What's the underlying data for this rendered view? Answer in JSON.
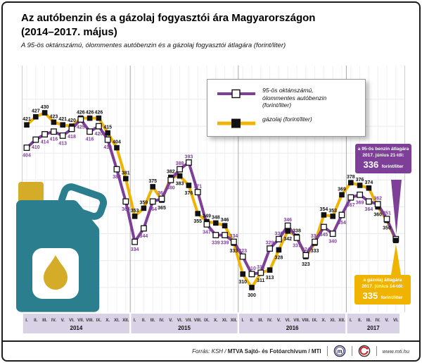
{
  "header": {
    "title": "Az autóbenzin és a gázolaj fogyasztói ára Magyarországon\n(2014–2017. május)",
    "subtitle": "A 95-ös oktánszámú, ólommentes autóbenzin és a gázolaj fogyasztói átlagára (forint/liter)"
  },
  "legend": {
    "benzin_label": "95-ös oktánszámú,\nólommentes autóbenzin\n(forint/liter)",
    "gazolaj_label": "gázolaj (forint/liter)"
  },
  "chart_data": {
    "type": "line",
    "title": "Az autóbenzin és a gázolaj fogyasztói ára Magyarországon (2014–2017. május)",
    "ylabel": "forint/liter",
    "ylim": [
      283,
      460
    ],
    "grid": "on",
    "legend_position": "top-right",
    "years": [
      {
        "label": "2014",
        "months": [
          "I.",
          "II.",
          "III.",
          "IV.",
          "V.",
          "VI.",
          "VII.",
          "VIII.",
          "IX.",
          "X.",
          "XI.",
          "XII."
        ]
      },
      {
        "label": "2015",
        "months": [
          "I.",
          "II.",
          "III.",
          "IV.",
          "V.",
          "VI.",
          "VII.",
          "VIII.",
          "IX.",
          "X.",
          "XI.",
          "XII."
        ]
      },
      {
        "label": "2016",
        "months": [
          "I.",
          "II.",
          "III.",
          "IV.",
          "V.",
          "VI.",
          "VII.",
          "VIII.",
          "IX.",
          "X.",
          "XI.",
          "XII."
        ]
      },
      {
        "label": "2017",
        "months": [
          "I.",
          "II.",
          "III.",
          "IV.",
          "V.",
          "VI."
        ]
      }
    ],
    "series": [
      {
        "name": "95-ös oktánszámú, ólommentes autóbenzin (forint/liter)",
        "color": "#7d3f98",
        "marker": "white-square",
        "values": [
          404,
          410,
          414,
          416,
          413,
          418,
          425,
          416,
          420,
          410,
          388,
          364,
          334,
          344,
          364,
          366,
          380,
          388,
          393,
          371,
          347,
          339,
          339,
          334,
          323,
          310,
          311,
          329,
          336,
          346,
          337,
          324,
          334,
          345,
          340,
          354,
          367,
          369,
          364,
          362,
          351,
          336
        ]
      },
      {
        "name": "gázolaj (forint/liter)",
        "color": "#f0b400",
        "marker": "black-square",
        "values": [
          421,
          427,
          430,
          423,
          421,
          420,
          426,
          426,
          426,
          415,
          404,
          381,
          353,
          359,
          375,
          365,
          382,
          383,
          376,
          355,
          349,
          348,
          346,
          333,
          310,
          300,
          311,
          313,
          328,
          342,
          338,
          323,
          333,
          354,
          353,
          369,
          378,
          376,
          374,
          360,
          350,
          335
        ]
      }
    ]
  },
  "annotations": {
    "benzin": {
      "line1": "a 95-ös benzin átlagára",
      "line2": "2017. június 21-től:",
      "value": "336",
      "unit": "forint/liter",
      "color": "#7d3f98"
    },
    "gazolaj": {
      "line1": "a gázolaj átlagára",
      "line2": "2017. június 14-től:",
      "value": "335",
      "unit": "forint/liter",
      "color": "#f0b400"
    }
  },
  "footer": {
    "source_prefix": "Forrás: KSH / ",
    "source_bold": "MTVA Sajtó- és Fotóarchívum / MTI",
    "website": "www.mti.hu"
  },
  "colors": {
    "benzin": "#7d3f98",
    "gazolaj": "#f0b400",
    "axis_band": "#d9d2e6",
    "can_teal": "#2b7e8e",
    "can_yellow": "#d4ac28"
  }
}
